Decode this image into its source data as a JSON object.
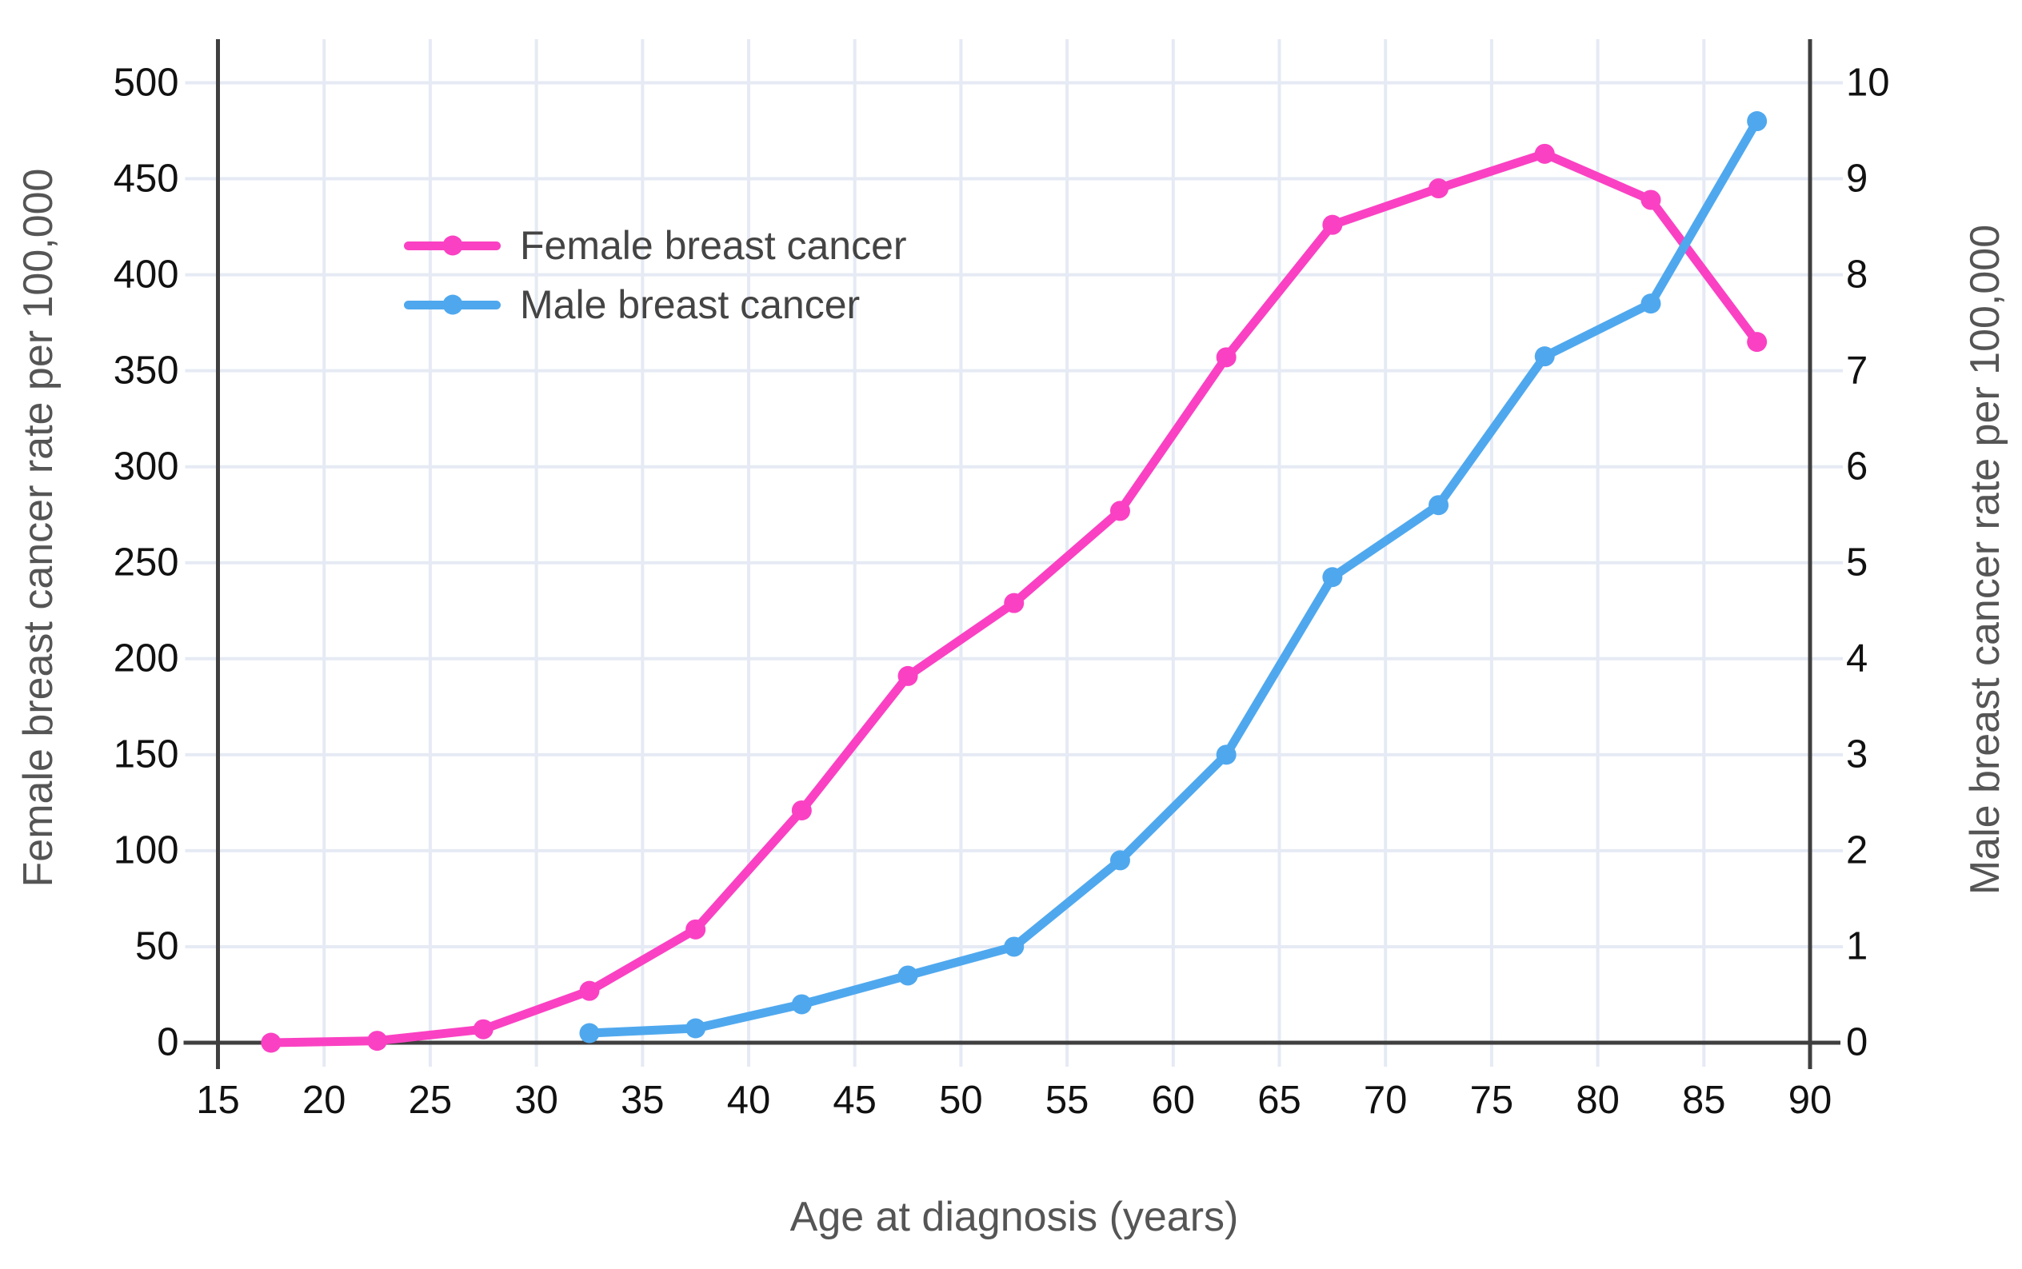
{
  "chart_data": {
    "type": "line",
    "title": "",
    "xlabel": "Age at diagnosis (years)",
    "ylabel_left": "Female breast cancer rate per 100,000",
    "ylabel_right": "Male breast cancer rate per 100,000",
    "x_range": [
      15,
      90
    ],
    "y_left_range": [
      0,
      500
    ],
    "y_right_range": [
      0,
      10
    ],
    "x_ticks": [
      15,
      20,
      25,
      30,
      35,
      40,
      45,
      50,
      55,
      60,
      65,
      70,
      75,
      80,
      85,
      90
    ],
    "y_left_ticks": [
      0,
      50,
      100,
      150,
      200,
      250,
      300,
      350,
      400,
      450,
      500
    ],
    "y_right_ticks": [
      0,
      1,
      2,
      3,
      4,
      5,
      6,
      7,
      8,
      9,
      10
    ],
    "grid": true,
    "legend_position": "upper-left-inside",
    "series": [
      {
        "name": "Female breast cancer",
        "axis": "left",
        "color": "#FA41C3",
        "x": [
          17.5,
          22.5,
          27.5,
          32.5,
          37.5,
          42.5,
          47.5,
          52.5,
          57.5,
          62.5,
          67.5,
          72.5,
          77.5,
          82.5,
          87.5
        ],
        "values": [
          0,
          1,
          7,
          27,
          59,
          121,
          191,
          229,
          277,
          357,
          426,
          445,
          463,
          439,
          365
        ]
      },
      {
        "name": "Male breast cancer",
        "axis": "right",
        "color": "#4FA8EE",
        "x": [
          32.5,
          37.5,
          42.5,
          47.5,
          52.5,
          57.5,
          62.5,
          67.5,
          72.5,
          77.5,
          82.5,
          87.5
        ],
        "values": [
          0.1,
          0.15,
          0.4,
          0.7,
          1.0,
          1.9,
          3.0,
          4.85,
          5.6,
          7.15,
          7.7,
          9.6
        ]
      }
    ]
  },
  "colors": {
    "grid": "#E5EAF4",
    "axis": "#3F3F3F",
    "tick_labels": "#111111",
    "legend_text": "#444444",
    "axis_titles": "#555555",
    "background": "#FFFFFF"
  }
}
